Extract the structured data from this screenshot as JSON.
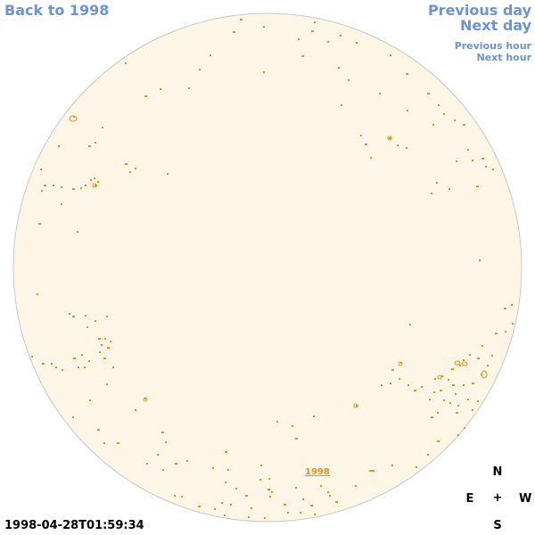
{
  "nav": {
    "back_label": "Back to 1998",
    "previous_day_label": "Previous day",
    "next_day_label": "Next day",
    "previous_hour_label": "Previous hour",
    "next_hour_label": "Next hour"
  },
  "timestamp": "1998-04-28T01:59:34",
  "year_label": "1998",
  "compass": {
    "north": "N",
    "east": "E",
    "center": "+",
    "west": "W",
    "south": "S"
  },
  "colors": {
    "disk_fill": "#fdf6e6",
    "disk_border": "#c8c8c8",
    "contour": "#e8921c",
    "link": "#6c93d9"
  }
}
